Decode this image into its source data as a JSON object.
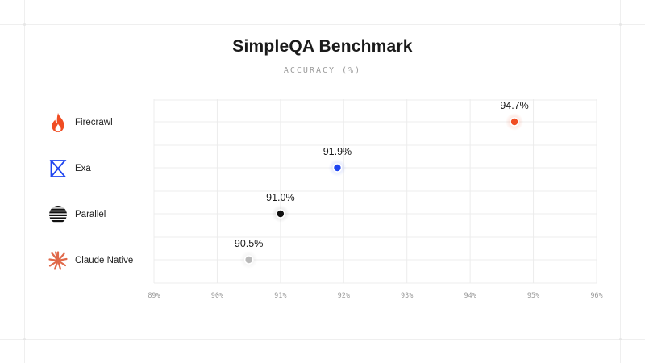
{
  "colors": {
    "firecrawl": "#f04d23",
    "exa": "#1f45f0",
    "parallel": "#111111",
    "claude": "#b9b9b9",
    "claude_icon": "#e0694a",
    "grid": "#ececec",
    "tick": "#9a9a9a"
  },
  "icons": [
    "flame-icon",
    "exa-logo-icon",
    "parallel-logo-icon",
    "claude-burst-icon"
  ],
  "chart_data": {
    "type": "scatter",
    "title": "SimpleQA Benchmark",
    "subtitle": "ACCURACY (%)",
    "xlim": [
      89,
      96
    ],
    "x_ticks": [
      "89%",
      "90%",
      "91%",
      "92%",
      "93%",
      "94%",
      "95%",
      "96%"
    ],
    "grid": true,
    "categories": [
      "Firecrawl",
      "Exa",
      "Parallel",
      "Claude Native"
    ],
    "values": [
      94.7,
      91.9,
      91.0,
      90.5
    ],
    "labels": [
      "94.7%",
      "91.9%",
      "91.0%",
      "90.5%"
    ]
  }
}
